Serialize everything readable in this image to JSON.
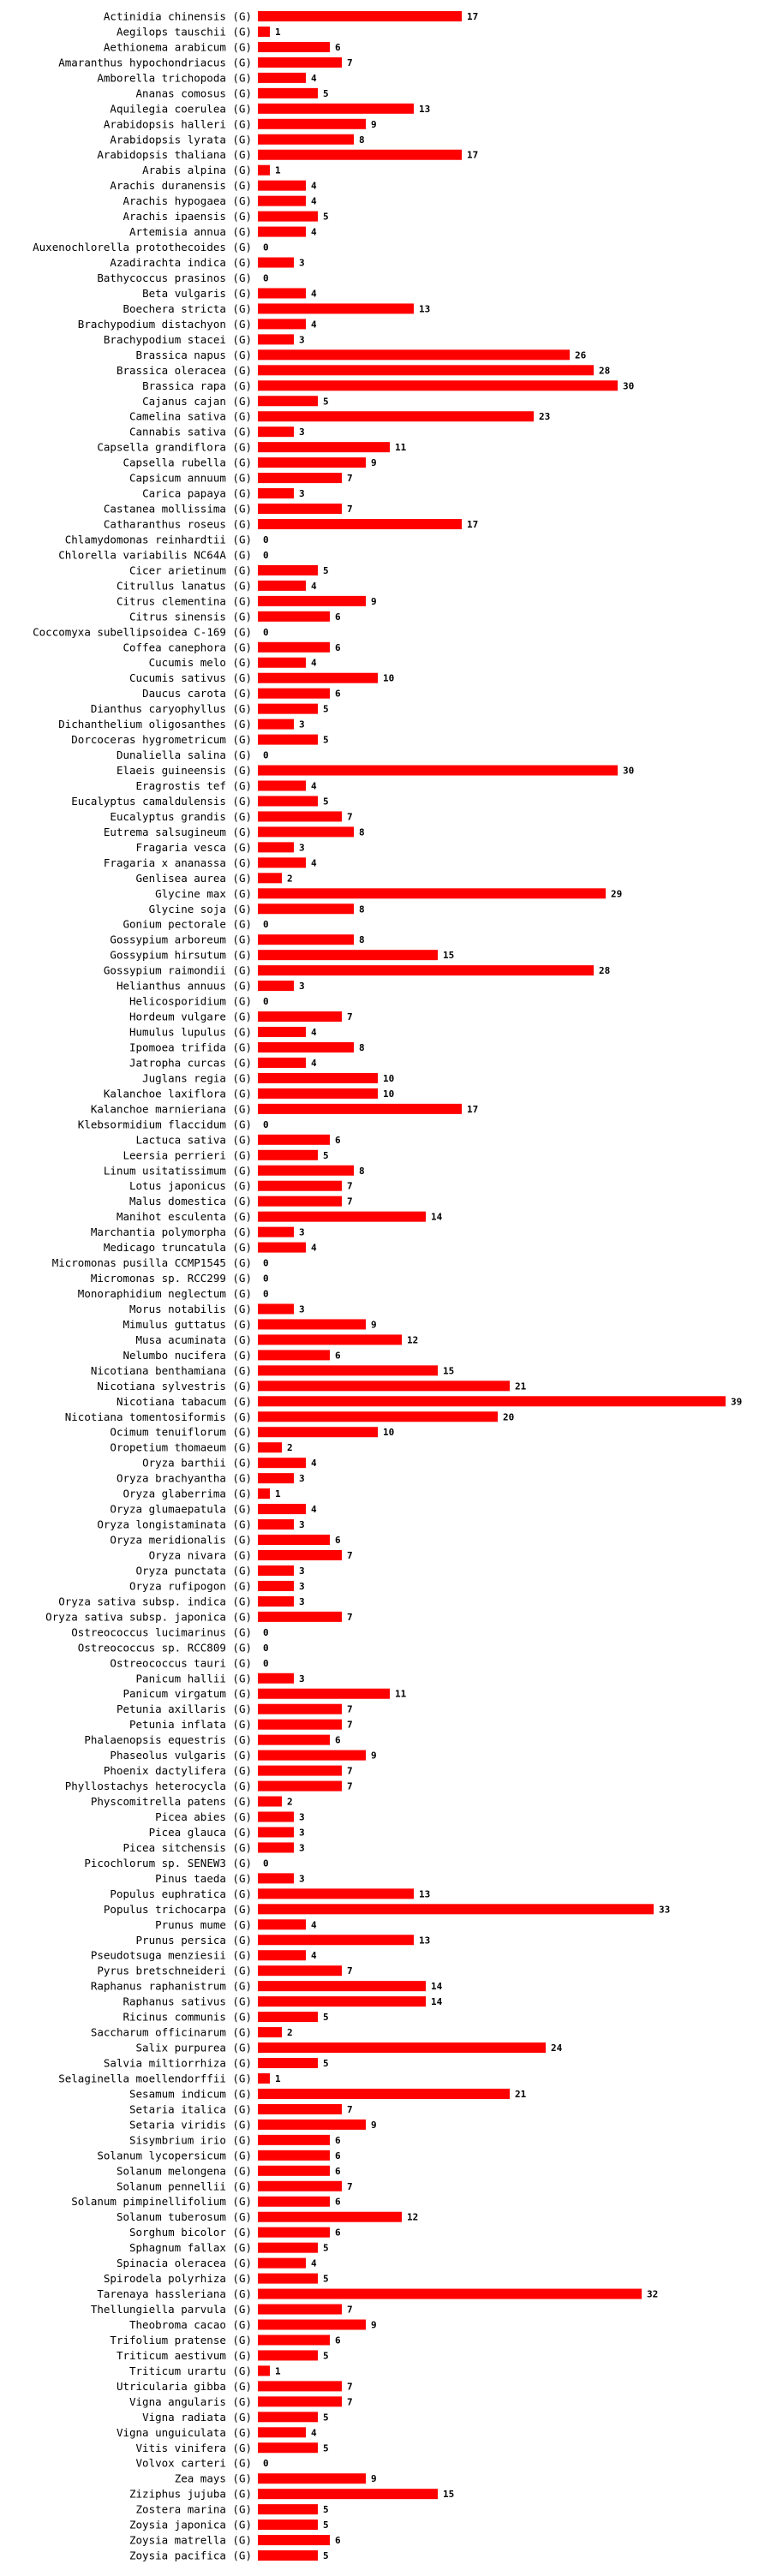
{
  "chart_data": {
    "type": "bar",
    "orientation": "horizontal",
    "title": "",
    "xlabel": "",
    "ylabel": "",
    "xlim": [
      0,
      39
    ],
    "grid": false,
    "bar_color": "#ff0000",
    "genome_tag": "(G)",
    "categories": [
      "Actinidia chinensis",
      "Aegilops tauschii",
      "Aethionema arabicum",
      "Amaranthus hypochondriacus",
      "Amborella trichopoda",
      "Ananas comosus",
      "Aquilegia coerulea",
      "Arabidopsis halleri",
      "Arabidopsis lyrata",
      "Arabidopsis thaliana",
      "Arabis alpina",
      "Arachis duranensis",
      "Arachis hypogaea",
      "Arachis ipaensis",
      "Artemisia annua",
      "Auxenochlorella protothecoides",
      "Azadirachta indica",
      "Bathycoccus prasinos",
      "Beta vulgaris",
      "Boechera stricta",
      "Brachypodium distachyon",
      "Brachypodium stacei",
      "Brassica napus",
      "Brassica oleracea",
      "Brassica rapa",
      "Cajanus cajan",
      "Camelina sativa",
      "Cannabis sativa",
      "Capsella grandiflora",
      "Capsella rubella",
      "Capsicum annuum",
      "Carica papaya",
      "Castanea mollissima",
      "Catharanthus roseus",
      "Chlamydomonas reinhardtii",
      "Chlorella variabilis NC64A",
      "Cicer arietinum",
      "Citrullus lanatus",
      "Citrus clementina",
      "Citrus sinensis",
      "Coccomyxa subellipsoidea C-169",
      "Coffea canephora",
      "Cucumis melo",
      "Cucumis sativus",
      "Daucus carota",
      "Dianthus caryophyllus",
      "Dichanthelium oligosanthes",
      "Dorcoceras hygrometricum",
      "Dunaliella salina",
      "Elaeis guineensis",
      "Eragrostis tef",
      "Eucalyptus camaldulensis",
      "Eucalyptus grandis",
      "Eutrema salsugineum",
      "Fragaria vesca",
      "Fragaria x ananassa",
      "Genlisea aurea",
      "Glycine max",
      "Glycine soja",
      "Gonium pectorale",
      "Gossypium arboreum",
      "Gossypium hirsutum",
      "Gossypium raimondii",
      "Helianthus annuus",
      "Helicosporidium",
      "Hordeum vulgare",
      "Humulus lupulus",
      "Ipomoea trifida",
      "Jatropha curcas",
      "Juglans regia",
      "Kalanchoe laxiflora",
      "Kalanchoe marnieriana",
      "Klebsormidium flaccidum",
      "Lactuca sativa",
      "Leersia perrieri",
      "Linum usitatissimum",
      "Lotus japonicus",
      "Malus domestica",
      "Manihot esculenta",
      "Marchantia polymorpha",
      "Medicago truncatula",
      "Micromonas pusilla CCMP1545",
      "Micromonas sp. RCC299",
      "Monoraphidium neglectum",
      "Morus notabilis",
      "Mimulus guttatus",
      "Musa acuminata",
      "Nelumbo nucifera",
      "Nicotiana benthamiana",
      "Nicotiana sylvestris",
      "Nicotiana tabacum",
      "Nicotiana tomentosiformis",
      "Ocimum tenuiflorum",
      "Oropetium thomaeum",
      "Oryza barthii",
      "Oryza brachyantha",
      "Oryza glaberrima",
      "Oryza glumaepatula",
      "Oryza longistaminata",
      "Oryza meridionalis",
      "Oryza nivara",
      "Oryza punctata",
      "Oryza rufipogon",
      "Oryza sativa subsp. indica",
      "Oryza sativa subsp. japonica",
      "Ostreococcus lucimarinus",
      "Ostreococcus sp. RCC809",
      "Ostreococcus tauri",
      "Panicum hallii",
      "Panicum virgatum",
      "Petunia axillaris",
      "Petunia inflata",
      "Phalaenopsis equestris",
      "Phaseolus vulgaris",
      "Phoenix dactylifera",
      "Phyllostachys heterocycla",
      "Physcomitrella patens",
      "Picea abies",
      "Picea glauca",
      "Picea sitchensis",
      "Picochlorum sp. SENEW3",
      "Pinus taeda",
      "Populus euphratica",
      "Populus trichocarpa",
      "Prunus mume",
      "Prunus persica",
      "Pseudotsuga menziesii",
      "Pyrus bretschneideri",
      "Raphanus raphanistrum",
      "Raphanus sativus",
      "Ricinus communis",
      "Saccharum officinarum",
      "Salix purpurea",
      "Salvia miltiorrhiza",
      "Selaginella moellendorffii",
      "Sesamum indicum",
      "Setaria italica",
      "Setaria viridis",
      "Sisymbrium irio",
      "Solanum lycopersicum",
      "Solanum melongena",
      "Solanum pennellii",
      "Solanum pimpinellifolium",
      "Solanum tuberosum",
      "Sorghum bicolor",
      "Sphagnum fallax",
      "Spinacia oleracea",
      "Spirodela polyrhiza",
      "Tarenaya hassleriana",
      "Thellungiella parvula",
      "Theobroma cacao",
      "Trifolium pratense",
      "Triticum aestivum",
      "Triticum urartu",
      "Utricularia gibba",
      "Vigna angularis",
      "Vigna radiata",
      "Vigna unguiculata",
      "Vitis vinifera",
      "Volvox carteri",
      "Zea mays",
      "Ziziphus jujuba",
      "Zostera marina",
      "Zoysia japonica",
      "Zoysia matrella",
      "Zoysia pacifica"
    ],
    "values": [
      17,
      1,
      6,
      7,
      4,
      5,
      13,
      9,
      8,
      17,
      1,
      4,
      4,
      5,
      4,
      0,
      3,
      0,
      4,
      13,
      4,
      3,
      26,
      28,
      30,
      5,
      23,
      3,
      11,
      9,
      7,
      3,
      7,
      17,
      0,
      0,
      5,
      4,
      9,
      6,
      0,
      6,
      4,
      10,
      6,
      5,
      3,
      5,
      0,
      30,
      4,
      5,
      7,
      8,
      3,
      4,
      2,
      29,
      8,
      0,
      8,
      15,
      28,
      3,
      0,
      7,
      4,
      8,
      4,
      10,
      10,
      17,
      0,
      6,
      5,
      8,
      7,
      7,
      14,
      3,
      4,
      0,
      0,
      0,
      3,
      9,
      12,
      6,
      15,
      21,
      39,
      20,
      10,
      2,
      4,
      3,
      1,
      4,
      3,
      6,
      7,
      3,
      3,
      3,
      7,
      0,
      0,
      0,
      3,
      11,
      7,
      7,
      6,
      9,
      7,
      7,
      2,
      3,
      3,
      3,
      0,
      3,
      13,
      33,
      4,
      13,
      4,
      7,
      14,
      14,
      5,
      2,
      24,
      5,
      1,
      21,
      7,
      9,
      6,
      6,
      6,
      7,
      6,
      12,
      6,
      5,
      4,
      5,
      32,
      7,
      9,
      6,
      5,
      1,
      7,
      7,
      5,
      4,
      5,
      0,
      9,
      15,
      5,
      5,
      6,
      5
    ]
  }
}
